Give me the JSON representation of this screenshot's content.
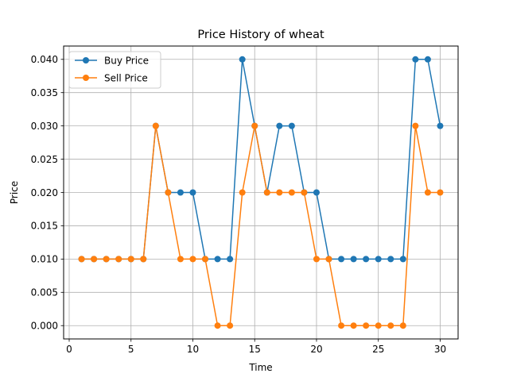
{
  "chart_data": {
    "type": "line",
    "title": "Price History of wheat",
    "xlabel": "Time",
    "ylabel": "Price",
    "xlim": [
      -0.45,
      31.45
    ],
    "ylim": [
      -0.002,
      0.042
    ],
    "xticks": [
      0,
      5,
      10,
      15,
      20,
      25,
      30
    ],
    "yticks": [
      0.0,
      0.005,
      0.01,
      0.015,
      0.02,
      0.025,
      0.03,
      0.035,
      0.04
    ],
    "xtick_labels": [
      "0",
      "5",
      "10",
      "15",
      "20",
      "25",
      "30"
    ],
    "ytick_labels": [
      "0.000",
      "0.005",
      "0.010",
      "0.015",
      "0.020",
      "0.025",
      "0.030",
      "0.035",
      "0.040"
    ],
    "grid": true,
    "legend_position": "top-left",
    "x": [
      1,
      2,
      3,
      4,
      5,
      6,
      7,
      8,
      9,
      10,
      11,
      12,
      13,
      14,
      15,
      16,
      17,
      18,
      19,
      20,
      21,
      22,
      23,
      24,
      25,
      26,
      27,
      28,
      29,
      30
    ],
    "series": [
      {
        "name": "Buy Price",
        "color": "#1f77b4",
        "values": [
          0.01,
          0.01,
          0.01,
          0.01,
          0.01,
          0.01,
          0.03,
          0.02,
          0.02,
          0.02,
          0.01,
          0.01,
          0.01,
          0.04,
          0.03,
          0.02,
          0.03,
          0.03,
          0.02,
          0.02,
          0.01,
          0.01,
          0.01,
          0.01,
          0.01,
          0.01,
          0.01,
          0.04,
          0.04,
          0.03
        ]
      },
      {
        "name": "Sell Price",
        "color": "#ff7f0e",
        "values": [
          0.01,
          0.01,
          0.01,
          0.01,
          0.01,
          0.01,
          0.03,
          0.02,
          0.01,
          0.01,
          0.01,
          0.0,
          0.0,
          0.02,
          0.03,
          0.02,
          0.02,
          0.02,
          0.02,
          0.01,
          0.01,
          0.0,
          0.0,
          0.0,
          0.0,
          0.0,
          0.0,
          0.03,
          0.02,
          0.02
        ]
      }
    ]
  }
}
